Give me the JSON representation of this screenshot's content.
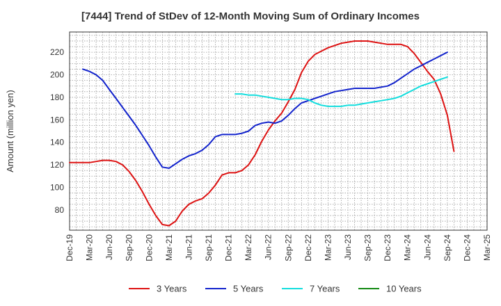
{
  "chart_data": {
    "type": "line",
    "title": "[7444]  Trend of StDev of 12-Month Moving Sum of Ordinary Incomes",
    "ylabel": "Amount (million yen)",
    "xlabel": "",
    "ylim": [
      62,
      238
    ],
    "yticks": [
      80,
      100,
      120,
      140,
      160,
      180,
      200,
      220
    ],
    "x_tick_labels": [
      "Dec-19",
      "Mar-20",
      "Jun-20",
      "Sep-20",
      "Dec-20",
      "Mar-21",
      "Jun-21",
      "Sep-21",
      "Dec-21",
      "Mar-22",
      "Jun-22",
      "Sep-22",
      "Dec-22",
      "Mar-23",
      "Jun-23",
      "Sep-23",
      "Dec-23",
      "Mar-24",
      "Jun-24",
      "Sep-24",
      "Dec-24",
      "Mar-25"
    ],
    "x_month_range": [
      0,
      63
    ],
    "grid": true,
    "legend_position": "bottom",
    "series": [
      {
        "name": "3 Years",
        "color": "#dd1111",
        "x": [
          0,
          1,
          2,
          3,
          4,
          5,
          6,
          7,
          8,
          9,
          10,
          11,
          12,
          13,
          14,
          15,
          16,
          17,
          18,
          19,
          20,
          21,
          22,
          23,
          24,
          25,
          26,
          27,
          28,
          29,
          30,
          31,
          32,
          33,
          34,
          35,
          36,
          37,
          38,
          39,
          40,
          41,
          42,
          43,
          44,
          45,
          46,
          47,
          48,
          49,
          50,
          51,
          52,
          53,
          54,
          55,
          56,
          57,
          58,
          59,
          60
        ],
        "values": [
          122,
          122,
          122,
          122,
          123,
          124,
          124,
          123,
          120,
          114,
          106,
          96,
          85,
          75,
          67,
          66,
          70,
          79,
          85,
          88,
          90,
          95,
          102,
          111,
          113,
          113,
          115,
          120,
          129,
          141,
          151,
          159,
          166,
          176,
          187,
          202,
          212,
          218,
          221,
          224,
          226,
          228,
          229,
          230,
          230,
          230,
          229,
          228,
          227,
          227,
          227,
          225,
          219,
          211,
          203,
          196,
          183,
          164,
          132,
          null,
          null
        ],
        "_note": "values in million yen"
      },
      {
        "name": "5 Years",
        "color": "#1122cc",
        "x": [
          0,
          1,
          2,
          3,
          4,
          5,
          6,
          7,
          8,
          9,
          10,
          11,
          12,
          13,
          14,
          15,
          16,
          17,
          18,
          19,
          20,
          21,
          22,
          23,
          24,
          25,
          26,
          27,
          28,
          29,
          30,
          31,
          32,
          33,
          34,
          35,
          36,
          37,
          38,
          39,
          40,
          41,
          42,
          43,
          44,
          45,
          46,
          47,
          48,
          49,
          50,
          51,
          52,
          53,
          54,
          55,
          56,
          57,
          58,
          59,
          60
        ],
        "values": [
          null,
          null,
          205,
          203,
          200,
          195,
          187,
          179,
          171,
          163,
          155,
          146,
          137,
          127,
          118,
          117,
          121,
          125,
          128,
          130,
          133,
          138,
          145,
          147,
          147,
          147,
          148,
          150,
          155,
          157,
          158,
          157,
          159,
          164,
          170,
          175,
          177,
          179,
          181,
          183,
          185,
          186,
          187,
          188,
          188,
          188,
          188,
          189,
          190,
          193,
          197,
          201,
          205,
          208,
          211,
          214,
          217,
          220,
          null,
          null,
          null
        ]
      },
      {
        "name": "7 Years",
        "color": "#11dddd",
        "x": [
          0,
          1,
          2,
          3,
          4,
          5,
          6,
          7,
          8,
          9,
          10,
          11,
          12,
          13,
          14,
          15,
          16,
          17,
          18,
          19,
          20,
          21,
          22,
          23,
          24,
          25,
          26,
          27,
          28,
          29,
          30,
          31,
          32,
          33,
          34,
          35,
          36,
          37,
          38,
          39,
          40,
          41,
          42,
          43,
          44,
          45,
          46,
          47,
          48,
          49,
          50,
          51,
          52,
          53,
          54,
          55,
          56,
          57,
          58,
          59,
          60
        ],
        "values": [
          null,
          null,
          null,
          null,
          null,
          null,
          null,
          null,
          null,
          null,
          null,
          null,
          null,
          null,
          null,
          null,
          null,
          null,
          null,
          null,
          null,
          null,
          null,
          null,
          null,
          183,
          183,
          182,
          182,
          181,
          180,
          179,
          178,
          178,
          179,
          179,
          178,
          175,
          173,
          172,
          172,
          172,
          173,
          173,
          174,
          175,
          176,
          177,
          178,
          179,
          181,
          184,
          187,
          190,
          192,
          194,
          196,
          198,
          null,
          null,
          null
        ]
      },
      {
        "name": "10 Years",
        "color": "#118811",
        "x": [],
        "values": []
      }
    ]
  }
}
